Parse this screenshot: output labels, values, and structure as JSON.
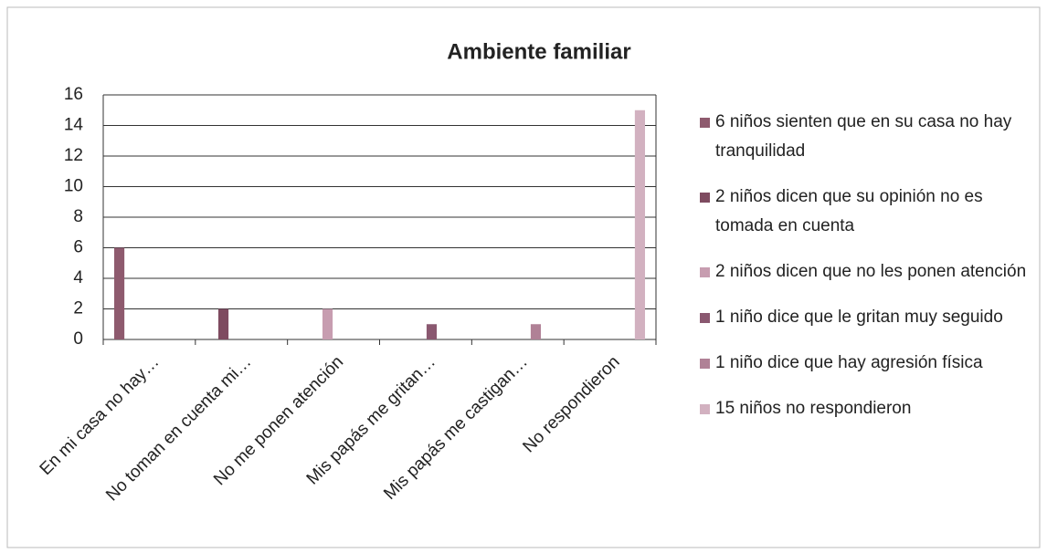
{
  "chart_data": {
    "type": "bar",
    "title": "Ambiente familiar",
    "categories": [
      "En mi casa no hay…",
      "No toman en cuenta mi…",
      "No me ponen atención",
      "Mis papás me gritan…",
      "Mis papás me castigan…",
      "No respondieron"
    ],
    "series": [
      {
        "name": "6 niños sienten que en su casa no hay tranquilidad",
        "color": "#8e5a6e",
        "values": [
          6,
          null,
          null,
          null,
          null,
          null
        ]
      },
      {
        "name": "2 niños dicen que su opinión no es tomada en cuenta",
        "color": "#7e4b60",
        "values": [
          null,
          2,
          null,
          null,
          null,
          null
        ]
      },
      {
        "name": "2 niños dicen que no les ponen atención",
        "color": "#c79db0",
        "values": [
          null,
          null,
          2,
          null,
          null,
          null
        ]
      },
      {
        "name": "1 niño dice que le gritan muy seguido",
        "color": "#8a5870",
        "values": [
          null,
          null,
          null,
          1,
          null,
          null
        ]
      },
      {
        "name": "1 niño dice que hay agresión física",
        "color": "#b08196",
        "values": [
          null,
          null,
          null,
          null,
          1,
          null
        ]
      },
      {
        "name": "15 niños no respondieron",
        "color": "#d2b1c0",
        "values": [
          null,
          null,
          null,
          null,
          null,
          15
        ]
      }
    ],
    "ylim": [
      0,
      16
    ],
    "yticks": [
      0,
      2,
      4,
      6,
      8,
      10,
      12,
      14,
      16
    ],
    "grid": true,
    "legend": "right"
  }
}
